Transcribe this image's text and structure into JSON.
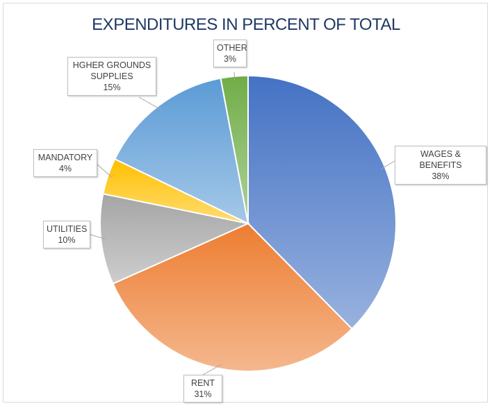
{
  "chart_data": {
    "type": "pie",
    "title": "EXPENDITURES IN PERCENT OF TOTAL",
    "categories": [
      "WAGES & BENEFITS",
      "RENT",
      "UTILITIES",
      "MANDATORY",
      "HGHER GROUNDS SUPPLIES",
      "OTHER"
    ],
    "values": [
      38,
      31,
      10,
      4,
      15,
      3
    ],
    "value_labels": [
      "38%",
      "31%",
      "10%",
      "4%",
      "15%",
      "3%"
    ],
    "colors": [
      "#4472c4",
      "#ed7d31",
      "#a5a5a5",
      "#ffc000",
      "#5b9bd5",
      "#70ad47"
    ]
  }
}
